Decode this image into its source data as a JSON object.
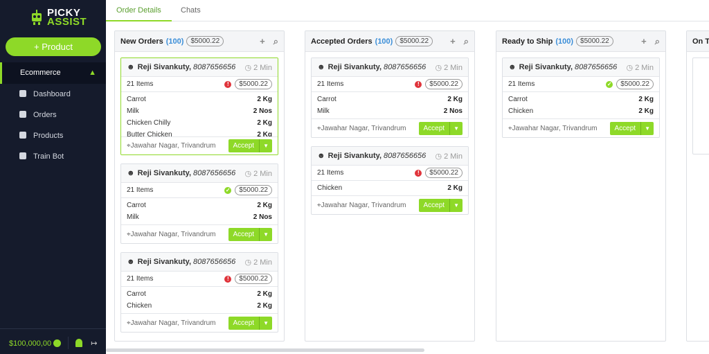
{
  "brand": {
    "line1": "PICKY",
    "line2": "ASSIST"
  },
  "sidebar": {
    "add_button": "+ Product",
    "section": "Ecommerce",
    "menu": [
      "Dashboard",
      "Orders",
      "Products",
      "Train Bot"
    ],
    "balance": "$100,000,00"
  },
  "tabs": [
    "Order Details",
    "Chats"
  ],
  "columns": [
    {
      "title": "New Orders",
      "count": "(100)",
      "total": "$5000.22",
      "cards": [
        {
          "name": "Reji Sivankuty,",
          "phone": "8087656656",
          "time": "2 Min",
          "items": "21 Items",
          "status": "alert",
          "amount": "$5000.22",
          "lines": [
            [
              "Carrot",
              "2 Kg"
            ],
            [
              "Milk",
              "2 Nos"
            ],
            [
              "Chicken Chilly",
              "2 Kg"
            ],
            [
              "Butter Chicken",
              "2 Kg"
            ]
          ],
          "location": "Jawahar Nagar, Trivandrum",
          "action": "Accept"
        },
        {
          "name": "Reji Sivankuty,",
          "phone": "8087656656",
          "time": "2 Min",
          "items": "21 Items",
          "status": "ok",
          "amount": "$5000.22",
          "lines": [
            [
              "Carrot",
              "2 Kg"
            ],
            [
              "Milk",
              "2 Nos"
            ]
          ],
          "location": "Jawahar Nagar, Trivandrum",
          "action": "Accept"
        },
        {
          "name": "Reji Sivankuty,",
          "phone": "8087656656",
          "time": "2 Min",
          "items": "21 Items",
          "status": "alert",
          "amount": "$5000.22",
          "lines": [
            [
              "Carrot",
              "2 Kg"
            ],
            [
              "Chicken",
              "2 Kg"
            ]
          ],
          "location": "Jawahar Nagar, Trivandrum",
          "action": "Accept"
        }
      ]
    },
    {
      "title": "Accepted Orders",
      "count": "(100)",
      "total": "$5000.22",
      "cards": [
        {
          "name": "Reji Sivankuty,",
          "phone": "8087656656",
          "time": "2 Min",
          "items": "21 Items",
          "status": "alert",
          "amount": "$5000.22",
          "lines": [
            [
              "Carrot",
              "2 Kg"
            ],
            [
              "Milk",
              "2 Nos"
            ]
          ],
          "location": "Jawahar Nagar, Trivandrum",
          "action": "Accept"
        },
        {
          "name": "Reji Sivankuty,",
          "phone": "8087656656",
          "time": "2 Min",
          "items": "21 Items",
          "status": "alert",
          "amount": "$5000.22",
          "lines": [
            [
              "Chicken",
              "2 Kg"
            ]
          ],
          "location": "Jawahar Nagar, Trivandrum",
          "action": "Accept"
        }
      ]
    },
    {
      "title": "Ready to Ship",
      "count": "(100)",
      "total": "$5000.22",
      "cards": [
        {
          "name": "Reji Sivankuty,",
          "phone": "8087656656",
          "time": "2 Min",
          "items": "21 Items",
          "status": "ok",
          "amount": "$5000.22",
          "lines": [
            [
              "Carrot",
              "2 Kg"
            ],
            [
              "Chicken",
              "2 Kg"
            ]
          ],
          "location": "Jawahar Nagar, Trivandrum",
          "action": "Accept"
        }
      ]
    },
    {
      "title": "On T",
      "cards": []
    }
  ]
}
